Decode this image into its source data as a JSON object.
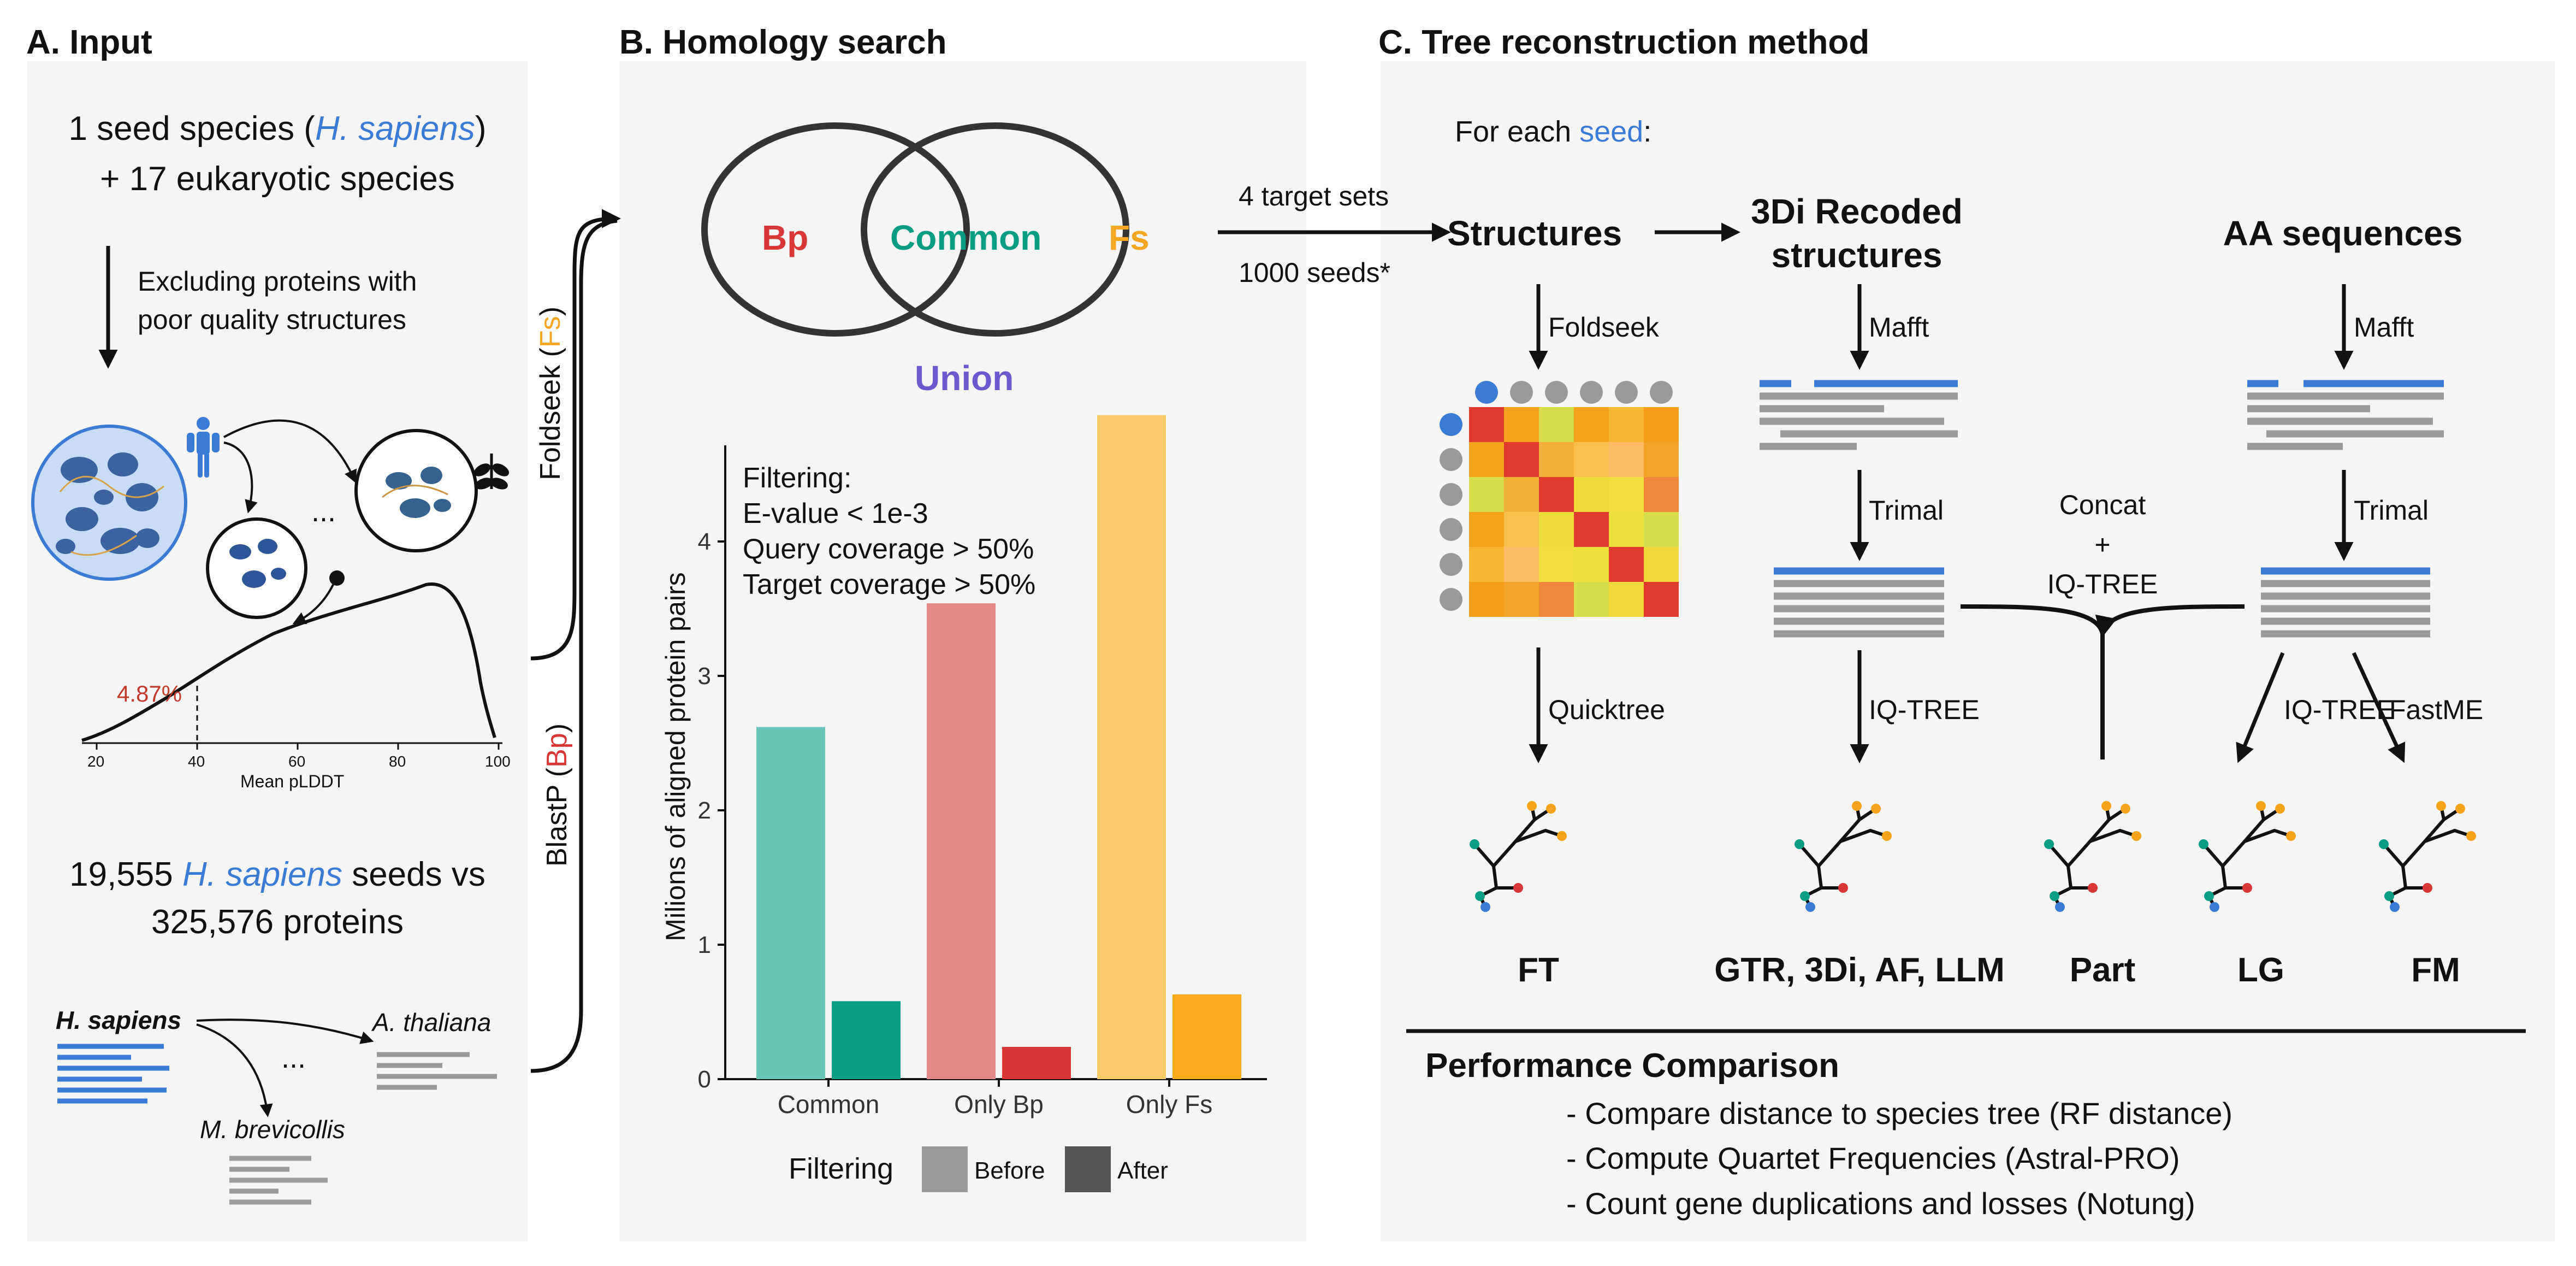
{
  "panels": {
    "a_title": "A. Input",
    "b_title": "B. Homology search",
    "c_title": "C. Tree reconstruction method"
  },
  "panel_a": {
    "seed_line_1_pre": "1 seed species (",
    "seed_species": "H. sapiens",
    "seed_line_1_post": ")",
    "seed_line_2": "+ 17 eukaryotic species",
    "exclude_line_1": "Excluding proteins with",
    "exclude_line_2": "poor quality structures",
    "ellipsis": "...",
    "plddt_threshold_label": "4.87%",
    "plddt_xlabel": "Mean pLDDT",
    "plddt_ticks": [
      "20",
      "40",
      "60",
      "80",
      "100"
    ],
    "seeds_count": "19,555",
    "seeds_species": "H. sapiens",
    "seeds_suffix": "seeds vs",
    "proteins_line": "325,576 proteins",
    "seq_species_1": "H. sapiens",
    "seq_species_2": "A. thaliana",
    "seq_species_3": "M. brevicollis",
    "seq_ellipsis": "..."
  },
  "connectors": {
    "foldseek_pre": "Foldseek (",
    "foldseek_abbr": "Fs",
    "foldseek_post": ")",
    "blastp_pre": "BlastP (",
    "blastp_abbr": "Bp",
    "blastp_post": ")"
  },
  "panel_b": {
    "venn_left": "Bp",
    "venn_center": "Common",
    "venn_right": "Fs",
    "venn_union": "Union",
    "target_sets": "4 target sets",
    "seeds": "1000 seeds*",
    "filter_title": "Filtering:",
    "filter_1": "E-value < 1e-3",
    "filter_2": "Query coverage > 50%",
    "filter_3": "Target coverage > 50%",
    "legend_title": "Filtering",
    "legend_before": "Before",
    "legend_after": "After"
  },
  "chart_data": {
    "type": "bar",
    "categories": [
      "Common",
      "Only Bp",
      "Only Fs"
    ],
    "series": [
      {
        "name": "Before",
        "values": [
          2.62,
          3.54,
          4.94
        ]
      },
      {
        "name": "After",
        "values": [
          0.58,
          0.24,
          0.63
        ]
      }
    ],
    "ylabel": "Milions of aligned protein pairs",
    "ylim": [
      0,
      5
    ],
    "yticks": [
      "0",
      "1",
      "2",
      "3",
      "4"
    ],
    "colors_before": [
      "#66c5b8",
      "#e48888",
      "#fbcb6a"
    ],
    "colors_after": [
      "#0a9c84",
      "#d93636",
      "#fbaa1a"
    ],
    "grid": false,
    "legend_placement": "bottom"
  },
  "panel_c": {
    "for_each_pre": "For each ",
    "for_each_seed": "seed",
    "for_each_post": ":",
    "col_structures": "Structures",
    "col_3di_1": "3Di Recoded",
    "col_3di_2": "structures",
    "col_aa": "AA sequences",
    "foldseek": "Foldseek",
    "mafft_1": "Mafft",
    "mafft_2": "Mafft",
    "trimal_1": "Trimal",
    "trimal_2": "Trimal",
    "concat": "Concat",
    "plus": "+",
    "iqtree_concat": "IQ-TREE",
    "quicktree": "Quicktree",
    "iqtree_3di": "IQ-TREE",
    "iqtree_aa": "IQ-TREE",
    "fastme": "FastME",
    "methods": [
      "FT",
      "GTR, 3Di, AF, LLM",
      "Part",
      "LG",
      "FM"
    ],
    "perf_title": "Performance Comparison",
    "perf_1": "- Compare distance to species tree (RF distance)",
    "perf_2": "- Compute Quartet Frequencies (Astral-PRO)",
    "perf_3": "- Count gene duplications and losses (Notung)"
  },
  "colors": {
    "bp_red": "#d93636",
    "common_teal": "#0a9c84",
    "fs_orange": "#f5a623",
    "union_purple": "#6a5acd",
    "seed_blue": "#3a7bd5"
  }
}
